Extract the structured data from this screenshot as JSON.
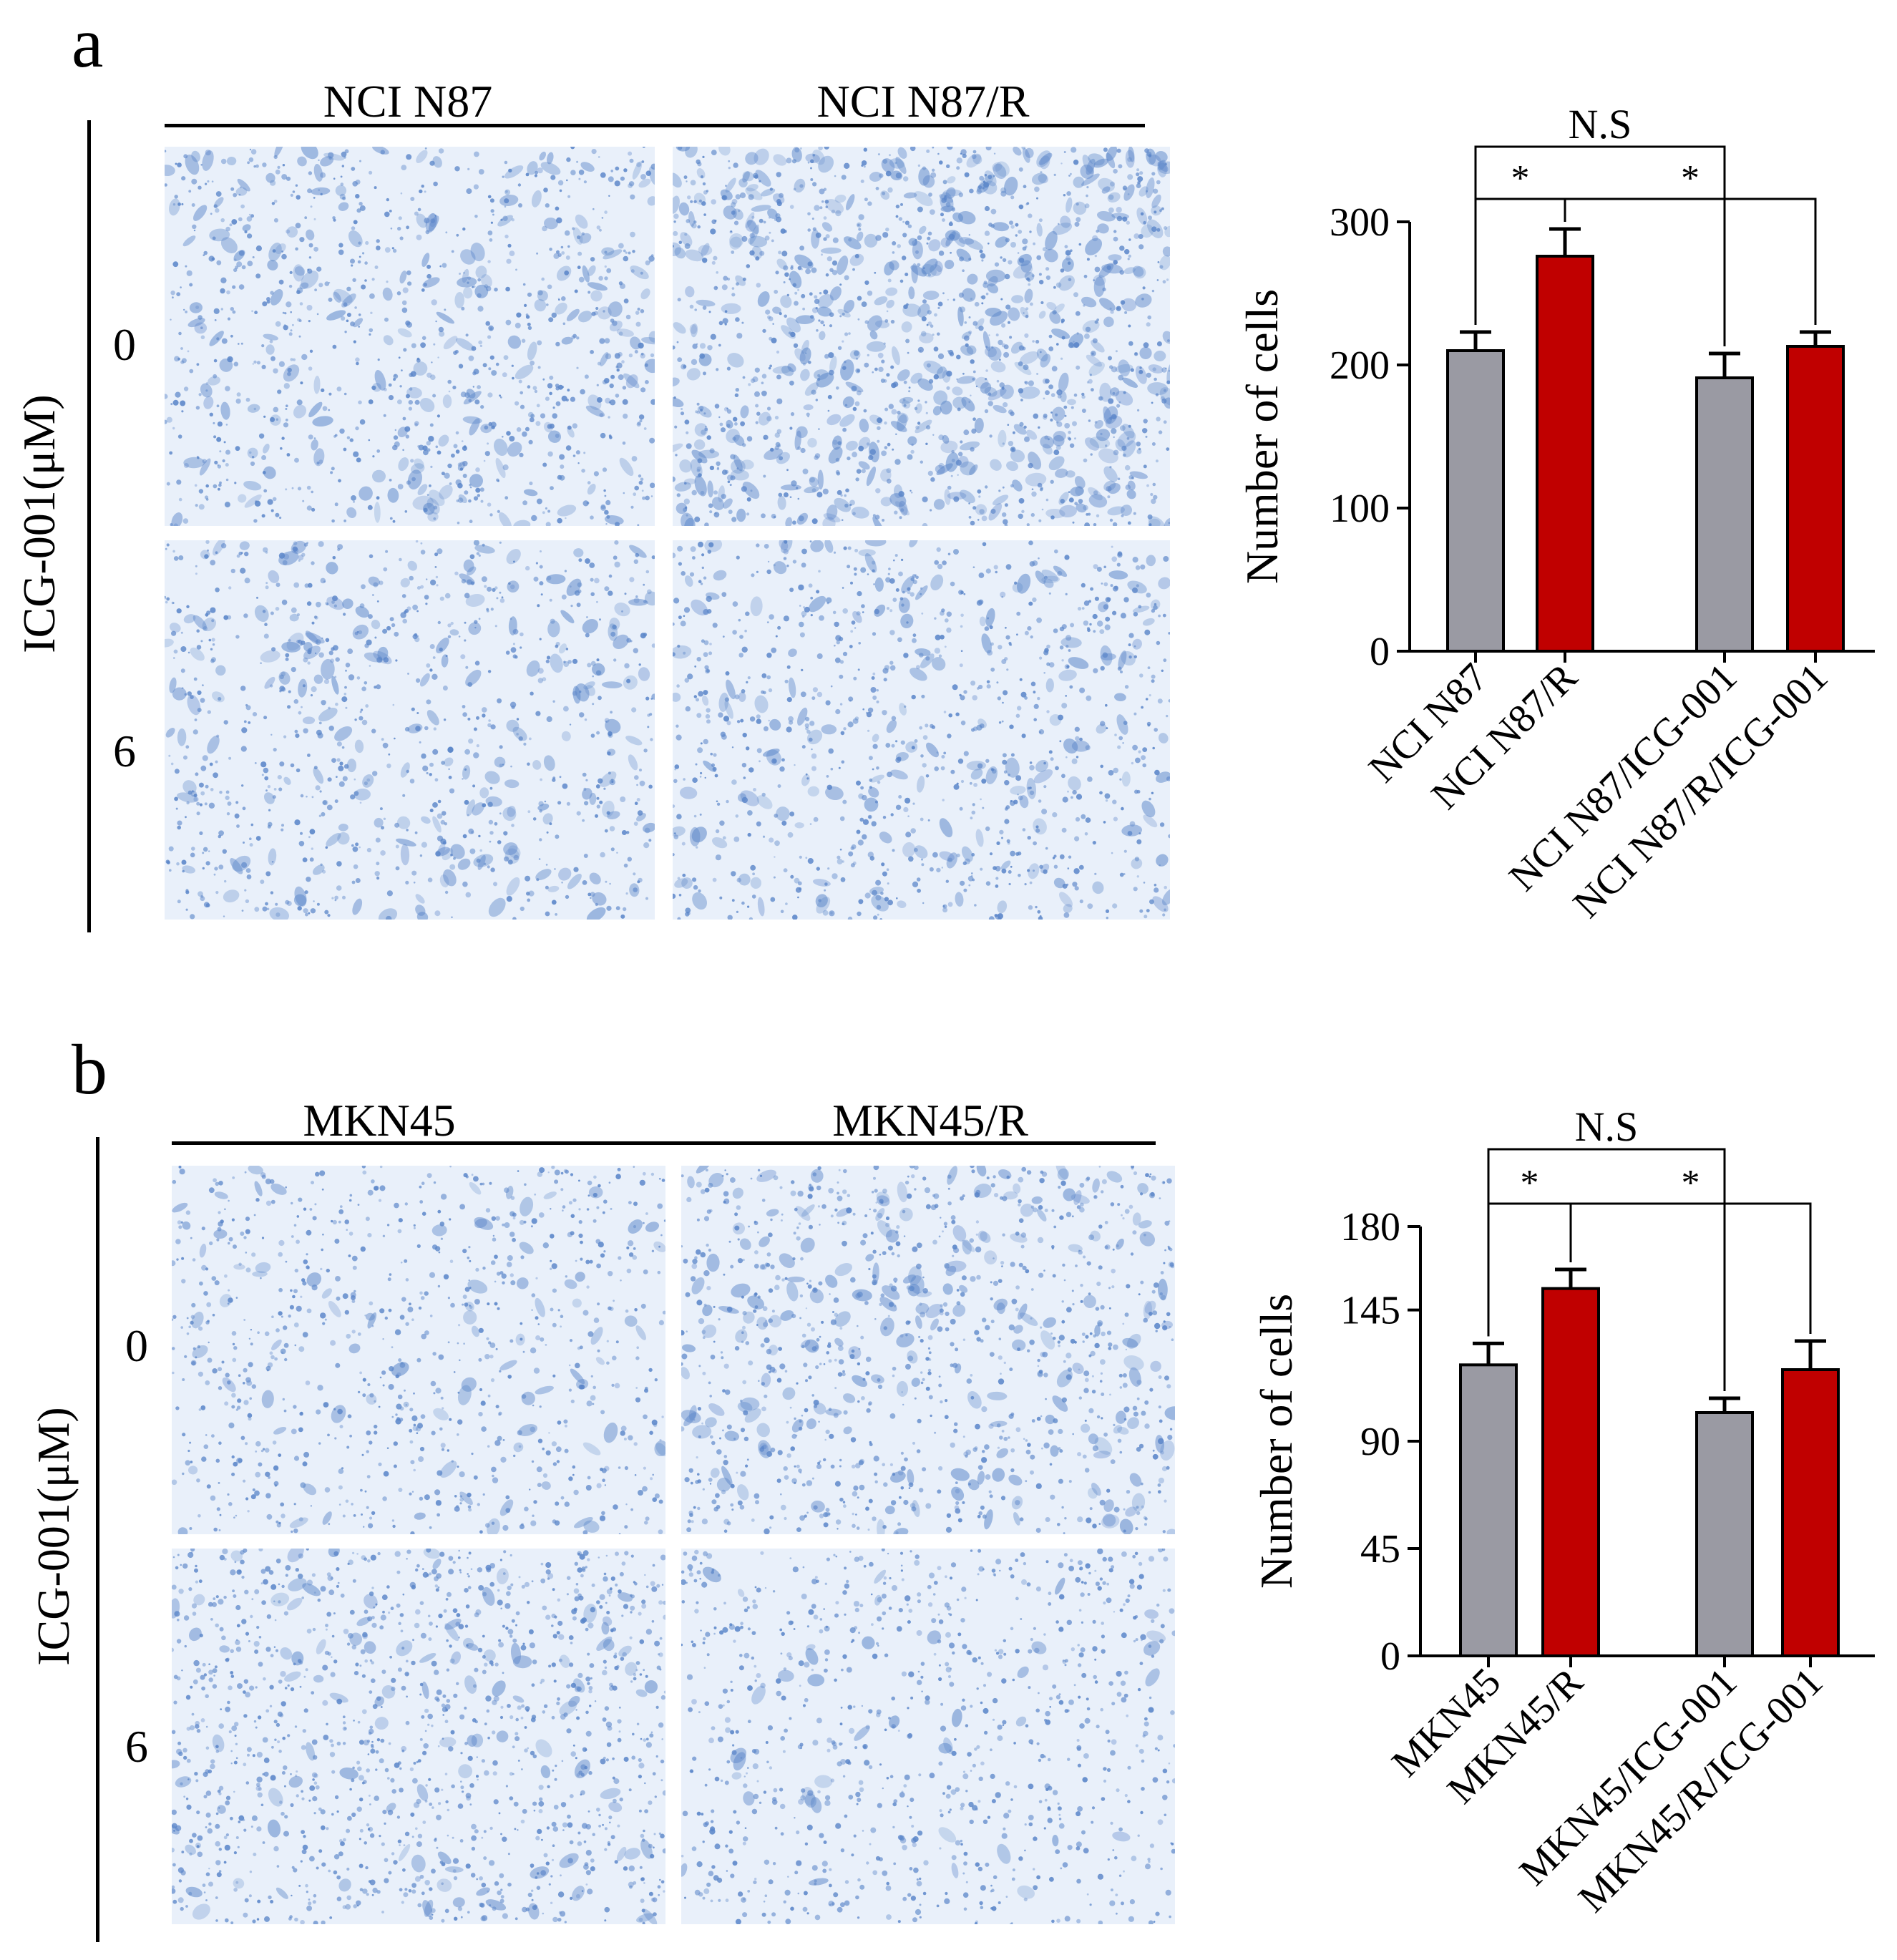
{
  "colors": {
    "gray_bar": "#9a9aa3",
    "red_bar": "#c00000",
    "stain_blue": "#5b86c9",
    "stain_bg": "#e9f0fa"
  },
  "panels": [
    {
      "letter": "a",
      "columns": [
        "NCI N87",
        "NCI N87/R"
      ],
      "row_axis_label": "ICG-001(μM)",
      "rows": [
        "0",
        "6"
      ],
      "micrographs": [
        "NCI N87 0 μM ICG-001 transwell image",
        "NCI N87/R 0 μM ICG-001 transwell image",
        "NCI N87 6 μM ICG-001 transwell image",
        "NCI N87/R 6 μM ICG-001 transwell image"
      ]
    },
    {
      "letter": "b",
      "columns": [
        "MKN45",
        "MKN45/R"
      ],
      "row_axis_label": "ICG-001(μM)",
      "rows": [
        "0",
        "6"
      ],
      "micrographs": [
        "MKN45 0 μM ICG-001 transwell image",
        "MKN45/R 0 μM ICG-001 transwell image",
        "MKN45 6 μM ICG-001 transwell image",
        "MKN45/R 6 μM ICG-001 transwell image"
      ]
    }
  ],
  "chart_data": [
    {
      "type": "bar",
      "title": "",
      "xlabel": "",
      "ylabel": "Number of cells",
      "ylim": [
        0,
        300
      ],
      "yticks": [
        "0",
        "100",
        "200",
        "300"
      ],
      "categories": [
        "NCI N87",
        "NCI N87/R",
        "NCI N87/ICG-001",
        "NCI N87/R/ICG-001"
      ],
      "values": [
        210,
        276,
        191,
        213
      ],
      "errors": [
        13,
        19,
        17,
        10
      ],
      "bar_colors": [
        "#9a9aa3",
        "#c00000",
        "#9a9aa3",
        "#c00000"
      ],
      "grid": false,
      "annotations": [
        {
          "from": 0,
          "to": 1,
          "text": "*"
        },
        {
          "from": 1,
          "to": 3,
          "text": "*"
        },
        {
          "from": 0,
          "to": 2,
          "text": "N.S"
        }
      ]
    },
    {
      "type": "bar",
      "title": "",
      "xlabel": "",
      "ylabel": "Number of cells",
      "ylim": [
        0,
        180
      ],
      "yticks": [
        "0",
        "45",
        "90",
        "145",
        "180"
      ],
      "categories": [
        "MKN45",
        "MKN45/R",
        "MKN45/ICG-001",
        "MKN45/R/ICG-001"
      ],
      "values": [
        122,
        154,
        102,
        120
      ],
      "errors": [
        9,
        8,
        6,
        12
      ],
      "bar_colors": [
        "#9a9aa3",
        "#c00000",
        "#9a9aa3",
        "#c00000"
      ],
      "grid": false,
      "annotations": [
        {
          "from": 0,
          "to": 1,
          "text": "*"
        },
        {
          "from": 1,
          "to": 3,
          "text": "*"
        },
        {
          "from": 0,
          "to": 2,
          "text": "N.S"
        }
      ]
    }
  ]
}
